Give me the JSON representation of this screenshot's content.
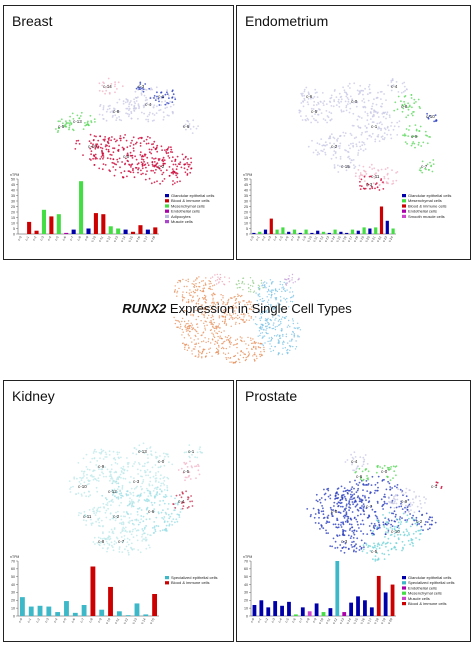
{
  "center": {
    "gene": "RUNX2",
    "title_rest": "Expression in Single Cell Types",
    "cluster_colors": [
      "#e8935f",
      "#7fc4e6",
      "#9ad08f",
      "#c7a0d8",
      "#f0a3b6"
    ]
  },
  "chart_data": [
    {
      "type": "bar",
      "panel": "Breast",
      "title": "Breast",
      "ylabel": "nTPM",
      "ylim": [
        0,
        50
      ],
      "yticks": [
        0,
        5,
        10,
        15,
        20,
        25,
        30,
        35,
        40,
        45,
        50
      ],
      "categories": [
        "c-0",
        "c-1",
        "c-2",
        "c-3",
        "c-4",
        "c-5",
        "c-6",
        "c-7",
        "c-8",
        "c-9",
        "c-10",
        "c-11",
        "c-12",
        "c-13",
        "c-14",
        "c-15",
        "c-16",
        "c-17",
        "c-18"
      ],
      "values": [
        0,
        11,
        3,
        22,
        16,
        18,
        1,
        4,
        48,
        5,
        19,
        18,
        7,
        5,
        4,
        2,
        8,
        4,
        6
      ],
      "colors": [
        "#0000aa",
        "#cc0000",
        "#cc0000",
        "#44dd44",
        "#cc0000",
        "#44dd44",
        "#aa00aa",
        "#0000aa",
        "#44dd44",
        "#0000aa",
        "#cc0000",
        "#cc0000",
        "#44dd44",
        "#44dd44",
        "#0000aa",
        "#cc0000",
        "#cc0000",
        "#0000aa",
        "#cc0000"
      ],
      "legend": [
        {
          "label": "Glandular epithelial cells",
          "color": "#0000aa"
        },
        {
          "label": "Blood & immune cells",
          "color": "#cc0000"
        },
        {
          "label": "Mesenchymal cells",
          "color": "#44dd44"
        },
        {
          "label": "Endothelial cells",
          "color": "#aa00aa"
        },
        {
          "label": "Adipocytes",
          "color": "#bbbbdd"
        },
        {
          "label": "Muscle cells",
          "color": "#aa44cc"
        }
      ],
      "umap_colors": [
        "#c9c9e6",
        "#2a3fbf",
        "#cc0033",
        "#5fd85f",
        "#f3b3c6"
      ],
      "clusters": [
        "c-4",
        "c-1",
        "c-8",
        "c-13",
        "c-14",
        "c-0",
        "c-10",
        "c-2",
        "c-6",
        "c-5",
        "c-3"
      ]
    },
    {
      "type": "bar",
      "panel": "Endometrium",
      "title": "Endometrium",
      "ylabel": "nTPM",
      "ylim": [
        0,
        50
      ],
      "yticks": [
        0,
        5,
        10,
        15,
        20,
        25,
        30,
        35,
        40,
        45,
        50
      ],
      "categories": [
        "c-0",
        "c-1",
        "c-2",
        "c-3",
        "c-4",
        "c-5",
        "c-6",
        "c-7",
        "c-8",
        "c-9",
        "c-10",
        "c-11",
        "c-12",
        "c-13",
        "c-14",
        "c-15",
        "c-16",
        "c-17",
        "c-18",
        "c-19",
        "c-20",
        "c-21",
        "c-22",
        "c-23",
        "c-24"
      ],
      "values": [
        1,
        2,
        4,
        14,
        4,
        6,
        2,
        4,
        1,
        4,
        1,
        3,
        2,
        1,
        4,
        2,
        1,
        4,
        3,
        6,
        5,
        6,
        25,
        12,
        5
      ],
      "colors": [
        "#0000aa",
        "#44dd44",
        "#0000aa",
        "#cc0000",
        "#44dd44",
        "#44dd44",
        "#0000aa",
        "#44dd44",
        "#0000aa",
        "#44dd44",
        "#0000aa",
        "#0000aa",
        "#44dd44",
        "#0000aa",
        "#44dd44",
        "#0000aa",
        "#0000aa",
        "#44dd44",
        "#0000aa",
        "#44dd44",
        "#0000aa",
        "#44dd44",
        "#cc0000",
        "#0000aa",
        "#44dd44"
      ],
      "legend": [
        {
          "label": "Glandular epithelial cells",
          "color": "#0000aa"
        },
        {
          "label": "Mesenchymal cells",
          "color": "#44dd44"
        },
        {
          "label": "Blood & immune cells",
          "color": "#cc0000"
        },
        {
          "label": "Endothelial cells",
          "color": "#aa00aa"
        },
        {
          "label": "Smooth muscle cells",
          "color": "#cc44cc"
        }
      ],
      "umap_colors": [
        "#c9c9e6",
        "#2a3fbf",
        "#cc0033",
        "#5fd85f",
        "#f3b3c6"
      ],
      "clusters": [
        "c-0",
        "c-5",
        "c-1",
        "c-2",
        "c-8",
        "c-9",
        "c-11",
        "c-3",
        "c-7",
        "c-6",
        "c-4",
        "c-10",
        "c-15"
      ]
    },
    {
      "type": "bar",
      "panel": "Kidney",
      "title": "Kidney",
      "ylabel": "nTPM",
      "ylim": [
        0,
        70
      ],
      "yticks": [
        0,
        10,
        20,
        30,
        40,
        50,
        60,
        70
      ],
      "categories": [
        "c-0",
        "c-1",
        "c-2",
        "c-3",
        "c-4",
        "c-5",
        "c-6",
        "c-7",
        "c-8",
        "c-9",
        "c-10",
        "c-11",
        "c-12",
        "c-13",
        "c-14",
        "c-15"
      ],
      "values": [
        24,
        12,
        13,
        12,
        5,
        19,
        4,
        14,
        63,
        8,
        37,
        6,
        1,
        16,
        2,
        28
      ],
      "colors": [
        "#3cb8c8",
        "#3cb8c8",
        "#3cb8c8",
        "#3cb8c8",
        "#3cb8c8",
        "#3cb8c8",
        "#3cb8c8",
        "#3cb8c8",
        "#cc0000",
        "#3cb8c8",
        "#cc0000",
        "#3cb8c8",
        "#3cb8c8",
        "#3cb8c8",
        "#3cb8c8",
        "#cc0000"
      ],
      "legend": [
        {
          "label": "Specialized epithelial cells",
          "color": "#3cb8c8"
        },
        {
          "label": "Blood & immune cells",
          "color": "#cc0000"
        }
      ],
      "umap_colors": [
        "#bfe8ea",
        "#9adfe6",
        "#f3b3c6",
        "#cc3355"
      ],
      "clusters": [
        "c-9",
        "c-10",
        "c-3",
        "c-6",
        "c-2",
        "c-7",
        "c-5",
        "c-4",
        "c-11",
        "c-12",
        "c-1",
        "c-0",
        "c-8",
        "c-13"
      ]
    },
    {
      "type": "bar",
      "panel": "Prostate",
      "title": "Prostate",
      "ylabel": "nTPM",
      "ylim": [
        0,
        70
      ],
      "yticks": [
        0,
        10,
        20,
        30,
        40,
        50,
        60,
        70
      ],
      "categories": [
        "c-0",
        "c-1",
        "c-2",
        "c-3",
        "c-4",
        "c-5",
        "c-6",
        "c-7",
        "c-8",
        "c-9",
        "c-10",
        "c-11",
        "c-12",
        "c-13",
        "c-14",
        "c-15",
        "c-16",
        "c-17",
        "c-18",
        "c-19",
        "c-20"
      ],
      "values": [
        14,
        20,
        11,
        19,
        13,
        18,
        2,
        11,
        6,
        16,
        5,
        10,
        70,
        5,
        17,
        25,
        20,
        11,
        51,
        30,
        40
      ],
      "colors": [
        "#0000aa",
        "#0000aa",
        "#0000aa",
        "#0000aa",
        "#0000aa",
        "#0000aa",
        "#44dd44",
        "#0000aa",
        "#cc44cc",
        "#0000aa",
        "#44dd44",
        "#0000aa",
        "#3cb8c8",
        "#aa00aa",
        "#0000aa",
        "#0000aa",
        "#0000aa",
        "#0000aa",
        "#cc0000",
        "#0000aa",
        "#cc0000"
      ],
      "legend": [
        {
          "label": "Glandular epithelial cells",
          "color": "#0000aa"
        },
        {
          "label": "Specialized epithelial cells",
          "color": "#3cb8c8"
        },
        {
          "label": "Endothelial cells",
          "color": "#aa00aa"
        },
        {
          "label": "Mesenchymal cells",
          "color": "#44dd44"
        },
        {
          "label": "Muscle cells",
          "color": "#cc44cc"
        },
        {
          "label": "Blood & immune cells",
          "color": "#cc0000"
        }
      ],
      "umap_colors": [
        "#c9c9e6",
        "#2a3fbf",
        "#6fd3d8",
        "#5fd85f",
        "#cc0033"
      ],
      "clusters": [
        "c-7",
        "c-8",
        "c-10",
        "c-4",
        "c-6",
        "c-0",
        "c-1",
        "c-3",
        "c-9",
        "c-5",
        "c-2"
      ]
    }
  ]
}
